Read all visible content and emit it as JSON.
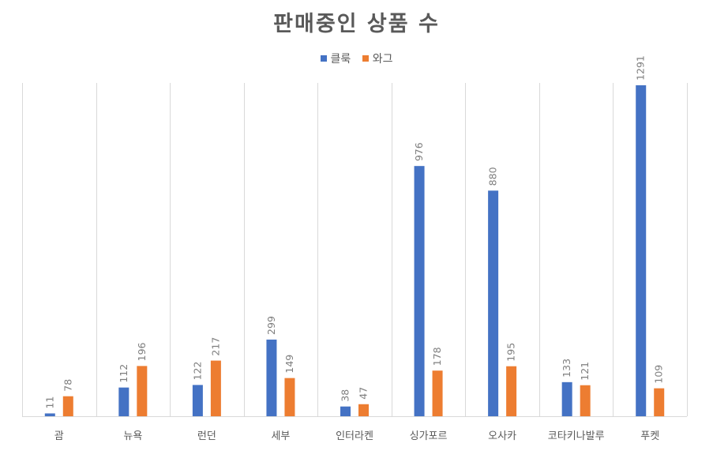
{
  "chart_data": {
    "type": "bar",
    "title": "판매중인 상품 수",
    "categories": [
      "괌",
      "뉴욕",
      "런던",
      "세부",
      "인터라켄",
      "싱가포르",
      "오사카",
      "코타키나발루",
      "푸켓"
    ],
    "series": [
      {
        "name": "클룩",
        "color": "#4472C4",
        "values": [
          11,
          112,
          122,
          299,
          38,
          976,
          880,
          133,
          1291
        ]
      },
      {
        "name": "와그",
        "color": "#ED7D31",
        "values": [
          78,
          196,
          217,
          149,
          47,
          178,
          195,
          121,
          109
        ]
      }
    ],
    "ylim": [
      0,
      1300
    ],
    "legend": "top",
    "grid": "vertical"
  }
}
